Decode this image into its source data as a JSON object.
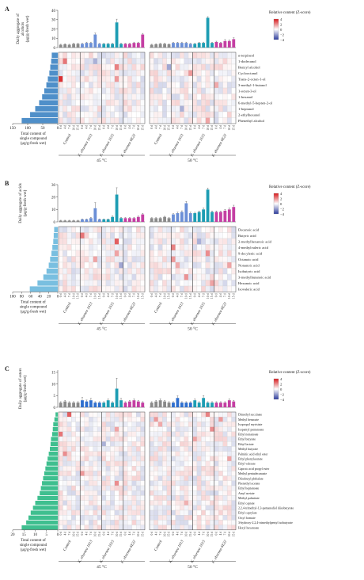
{
  "figure": {
    "temps": [
      "45 °C",
      "50 °C"
    ],
    "groups": [
      "Control",
      "K. eburnea 1613",
      "K. eburnea 1615",
      "K. eburnea 6E22"
    ],
    "days": [
      "0 d",
      "4 d",
      "7 d",
      "10 d",
      "15 d"
    ],
    "x_axis_title": [
      "Total content of",
      "single compound",
      "(μg/g-fresh wet)"
    ],
    "legend_title": "Relative content (Z-score)",
    "legend_ticks": [
      "4",
      "2",
      "0",
      "−2",
      "−4"
    ],
    "colors": {
      "pos": "#d7191c",
      "neg": "#2b3a9c",
      "mid": "#ffffff"
    }
  },
  "chart_data": [
    {
      "type": "heatmap",
      "panel": "A",
      "ylabel": [
        "Daily aggregate of",
        "alcohols",
        "(μg/g-fresh wet)"
      ],
      "y_ticks": [
        0,
        10,
        20,
        30,
        40
      ],
      "ylim": [
        0,
        40
      ],
      "bar_colors": [
        "#8a8a8a",
        "#6b8fd6",
        "#1d9db3",
        "#c43fa3"
      ],
      "bar_values": [
        [
          3,
          3.5,
          3,
          4,
          4,
          4,
          5,
          5,
          14,
          4,
          4,
          4,
          4,
          27,
          4,
          4,
          4,
          5,
          5,
          14
        ],
        [
          3,
          3.5,
          4,
          4,
          3.5,
          5,
          5,
          5,
          5,
          4,
          4,
          5,
          5,
          32,
          5,
          6,
          5,
          7,
          7,
          9
        ]
      ],
      "bar_errors": [
        [
          0.5,
          0.6,
          0.5,
          0.5,
          0.5,
          0.6,
          0.8,
          0.8,
          1.5,
          0.5,
          0.5,
          0.5,
          0.6,
          3.5,
          0.6,
          0.5,
          0.6,
          0.8,
          0.8,
          1.2
        ],
        [
          0.5,
          0.6,
          0.6,
          0.6,
          0.5,
          0.6,
          0.7,
          0.8,
          0.8,
          0.6,
          0.5,
          0.7,
          0.8,
          1.2,
          0.6,
          0.8,
          0.7,
          1.6,
          1.2,
          1.5
        ]
      ],
      "compounds": [
        "α-terpineol",
        "1-dodecanol",
        "Benzyl alcohol",
        "Cyclooctanol",
        "Trans-2-octen-1-ol",
        "3-methyl-1-butanol",
        "1-octen-3-ol",
        "1-hexanol",
        "6-methyl-5-hepten-2-ol",
        "1-heptanol",
        "2-ethylhexanol",
        "Phenethyl alcohol"
      ],
      "total_ticks": [
        150,
        100,
        50,
        0
      ],
      "total_max": 150,
      "totals": [
        20,
        22,
        25,
        28,
        33,
        38,
        45,
        52,
        62,
        75,
        92,
        120
      ],
      "total_color": "#4f8fc9",
      "seed": 11,
      "strong": [
        [
          0,
          4,
          3.6
        ],
        [
          1,
          1,
          2.4
        ],
        [
          13,
          2,
          2.2
        ],
        [
          13,
          4,
          1.8
        ],
        [
          8,
          1,
          -1.6
        ],
        [
          29,
          3,
          1.8
        ],
        [
          35,
          5,
          1.5
        ],
        [
          24,
          2,
          -1.8
        ],
        [
          27,
          9,
          -1.6
        ],
        [
          33,
          11,
          1.6
        ]
      ]
    },
    {
      "type": "heatmap",
      "panel": "B",
      "ylabel": [
        "Daily aggregate of acids",
        "(μg/g-fresh wet)"
      ],
      "y_ticks": [
        0,
        10,
        20,
        30
      ],
      "ylim": [
        0,
        30
      ],
      "bar_colors": [
        "#8a8a8a",
        "#6b8fd6",
        "#1d9db3",
        "#c43fa3"
      ],
      "bar_values": [
        [
          1,
          1,
          1,
          1,
          1,
          2,
          2,
          3,
          11,
          2,
          2,
          2,
          4,
          22,
          3,
          3,
          3,
          3,
          4,
          6
        ],
        [
          3,
          3,
          3,
          4,
          3,
          6,
          7,
          8,
          15,
          7,
          7,
          8,
          10,
          26,
          8,
          8,
          8,
          9,
          10,
          12
        ]
      ],
      "bar_errors": [
        [
          0.3,
          0.3,
          0.3,
          0.3,
          0.3,
          0.4,
          0.4,
          0.6,
          4.5,
          0.4,
          0.4,
          0.4,
          0.8,
          5.5,
          0.6,
          0.5,
          0.5,
          0.6,
          0.7,
          0.9
        ],
        [
          0.4,
          0.4,
          0.4,
          0.5,
          0.4,
          0.6,
          0.8,
          0.9,
          1.4,
          0.8,
          0.7,
          0.8,
          1.2,
          1.2,
          0.8,
          0.8,
          0.8,
          1,
          1.2,
          1.4
        ]
      ],
      "compounds": [
        "Decanoic acid",
        "Butyric acid",
        "2-methylhexanoic acid",
        "4-methylvaleric acid",
        "9-decylenic acid",
        "Octanoic acid",
        "Nonanoic acid",
        "Isobutyric acid",
        "3-methylbutanoic acid",
        "Hexanoic acid",
        "Isovaleric acid"
      ],
      "total_ticks": [
        100,
        80,
        60,
        40,
        20,
        0
      ],
      "total_max": 100,
      "totals": [
        8,
        9,
        10,
        12,
        14,
        17,
        20,
        25,
        32,
        45,
        62
      ],
      "total_color": "#79bfe0",
      "seed": 23,
      "strong": [
        [
          5,
          1,
          2.4
        ],
        [
          8,
          5,
          1.6
        ],
        [
          13,
          2,
          2.8
        ],
        [
          13,
          4,
          1.6
        ],
        [
          14,
          6,
          -1.8
        ],
        [
          25,
          3,
          2.2
        ],
        [
          25,
          5,
          1.8
        ],
        [
          26,
          6,
          1.5
        ],
        [
          28,
          8,
          1.9
        ],
        [
          31,
          2,
          -1.6
        ],
        [
          33,
          4,
          2.0
        ],
        [
          34,
          9,
          1.6
        ],
        [
          38,
          6,
          1.6
        ]
      ]
    },
    {
      "type": "heatmap",
      "panel": "C",
      "ylabel": [
        "Daily aggregate of esters",
        "(μg/g-fresh wet)"
      ],
      "y_ticks": [
        0,
        5,
        10,
        15
      ],
      "ylim": [
        0,
        16
      ],
      "bar_colors": [
        "#8a8a8a",
        "#2f6fcf",
        "#1d9db3",
        "#c43fa3"
      ],
      "bar_values": [
        [
          2,
          2.5,
          2,
          2,
          2,
          3,
          2.5,
          3,
          2,
          2,
          2,
          3,
          2,
          8,
          3,
          2,
          2.5,
          3,
          2.5,
          2
        ],
        [
          2,
          2.5,
          3,
          2.5,
          2,
          2,
          4,
          2,
          2,
          2,
          3,
          2,
          4,
          2,
          2,
          2,
          2,
          2,
          3,
          2.5
        ]
      ],
      "bar_errors": [
        [
          0.4,
          0.5,
          0.4,
          0.4,
          0.4,
          1.2,
          0.6,
          0.8,
          0.4,
          0.4,
          0.4,
          0.6,
          0.4,
          4.5,
          0.8,
          0.4,
          0.5,
          0.6,
          0.5,
          0.4
        ],
        [
          0.4,
          0.5,
          0.6,
          0.5,
          0.4,
          0.4,
          0.9,
          0.4,
          0.4,
          0.4,
          0.6,
          0.4,
          1.0,
          0.4,
          0.4,
          0.4,
          0.4,
          0.4,
          0.6,
          0.5
        ]
      ],
      "compounds": [
        "Dimethyl succinate",
        "Methyl benzoate",
        "Isopropyl myristate",
        "Isopentyl pentanoate",
        "Ethyl nonanoate",
        "Ethyl butyrate",
        "Ethyl lactate",
        "Methyl butyrate",
        "Palmitic acid ethyl ester",
        "Ethyl phenylacetate",
        "Ethyl valerate",
        "Caproic acid propyl ester",
        "Methyl pentadecanoate",
        "Diisobutyl phthalate",
        "Phenethyl acetate",
        "Ethyl heptanoate",
        "Amyl acetate",
        "Methyl palmitate",
        "Ethyl caprate",
        "2,2,4-trimethyl-1,3-pentanediol diisobutyrate",
        "Ethyl caprylate",
        "Octyl formate",
        "3-hydroxy-2,2,4-trimethylpentyl isobutyrate",
        "Hexyl hexanoate"
      ],
      "total_ticks": [
        20,
        15,
        10,
        5,
        0
      ],
      "total_max": 20,
      "totals": [
        1,
        1.5,
        2,
        2.2,
        2.5,
        3,
        3.2,
        3.5,
        4,
        4.5,
        5,
        5.5,
        6,
        6.5,
        7,
        7.5,
        8,
        9,
        10,
        11,
        12,
        13,
        14,
        16
      ],
      "total_color": "#3fbf8f",
      "seed": 37,
      "strong": [
        [
          0,
          4,
          2.4
        ],
        [
          1,
          8,
          2.0
        ],
        [
          2,
          0,
          2.8
        ],
        [
          5,
          12,
          1.8
        ],
        [
          10,
          6,
          -1.6
        ],
        [
          13,
          14,
          2.0
        ],
        [
          13,
          3,
          1.6
        ],
        [
          21,
          1,
          1.8
        ],
        [
          22,
          2,
          1.5
        ],
        [
          30,
          5,
          1.6
        ],
        [
          33,
          0,
          2.2
        ],
        [
          34,
          3,
          2.0
        ],
        [
          36,
          1,
          1.8
        ],
        [
          38,
          9,
          1.6
        ],
        [
          28,
          18,
          1.4
        ]
      ]
    }
  ]
}
